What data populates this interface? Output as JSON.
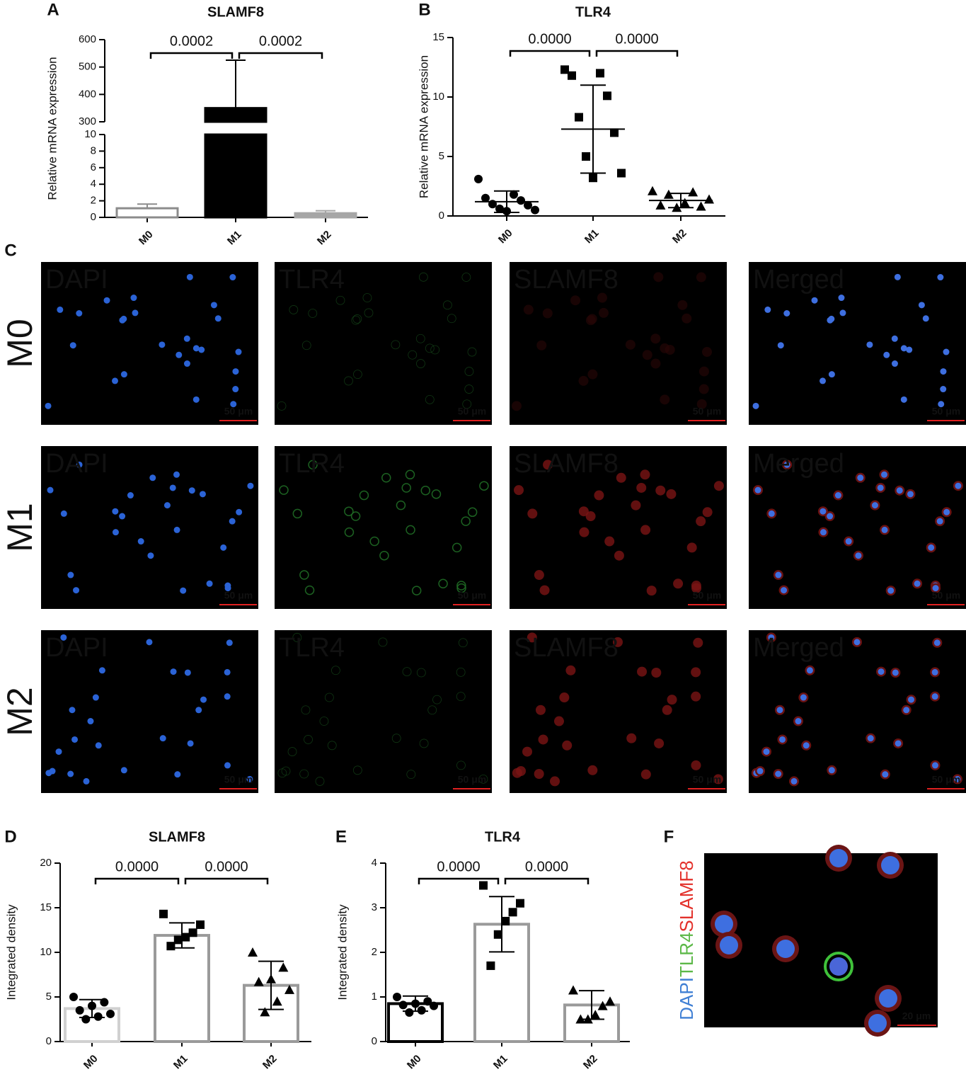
{
  "chart_data": [
    {
      "panel": "A",
      "type": "bar",
      "title": "SLAMF8",
      "ylabel": "Relative mRNA expression",
      "categories": [
        "M0",
        "M1",
        "M2"
      ],
      "values": [
        1.1,
        350,
        0.5
      ],
      "errors": [
        0.5,
        175,
        0.3
      ],
      "bar_fills": [
        "#ffffff",
        "#000000",
        "#a6a6a6"
      ],
      "bar_edges": [
        "#8c8c8c",
        "#000000",
        "#a6a6a6"
      ],
      "ylim": [
        0,
        600
      ],
      "ybreak": [
        10,
        300
      ],
      "yticks": [
        0,
        2,
        4,
        6,
        8,
        10,
        300,
        400,
        500,
        600
      ],
      "annotations": [
        "0.0002",
        "0.0002"
      ]
    },
    {
      "panel": "B",
      "type": "dotplot",
      "title": "TLR4",
      "ylabel": "Relative mRNA expression",
      "categories": [
        "M0",
        "M1",
        "M2"
      ],
      "values": [
        1.2,
        7.3,
        1.3
      ],
      "errors": [
        0.9,
        3.7,
        0.6
      ],
      "points": [
        [
          3.1,
          1.8,
          1.5,
          1.3,
          1.0,
          0.9,
          0.6,
          0.5,
          0.4
        ],
        [
          12.3,
          12.0,
          11.8,
          10.1,
          8.3,
          7.0,
          5.0,
          3.6,
          3.2
        ],
        [
          2.1,
          2.0,
          1.8,
          1.4,
          1.1,
          0.9,
          0.8,
          0.7
        ]
      ],
      "markers": [
        "circle",
        "square",
        "triangle"
      ],
      "ylim": [
        0,
        15
      ],
      "yticks": [
        0,
        5,
        10,
        15
      ],
      "annotations": [
        "0.0000",
        "0.0000"
      ]
    },
    {
      "panel": "D",
      "type": "bar_scatter",
      "title": "SLAMF8",
      "ylabel": "Integrated density",
      "categories": [
        "M0",
        "M1",
        "M2"
      ],
      "values": [
        3.7,
        11.9,
        6.3
      ],
      "errors": [
        1.0,
        1.4,
        2.7
      ],
      "points": [
        [
          5.0,
          4.4,
          4.0,
          3.5,
          3.1,
          2.8,
          2.5
        ],
        [
          14.3,
          13.1,
          12.2,
          11.7,
          11.4,
          10.7
        ],
        [
          10.0,
          8.3,
          7.0,
          6.7,
          5.8,
          4.5,
          3.3
        ]
      ],
      "markers": [
        "circle",
        "square",
        "triangle"
      ],
      "bar_edges": [
        "#d0d0d0",
        "#9a9a9a",
        "#9a9a9a"
      ],
      "ylim": [
        0,
        20
      ],
      "yticks": [
        0,
        5,
        10,
        15,
        20
      ],
      "annotations": [
        "0.0000",
        "0.0000"
      ]
    },
    {
      "panel": "E",
      "type": "bar_scatter",
      "title": "TLR4",
      "ylabel": "Integrated density",
      "categories": [
        "M0",
        "M1",
        "M2"
      ],
      "values": [
        0.85,
        2.63,
        0.82
      ],
      "errors": [
        0.17,
        0.62,
        0.32
      ],
      "points": [
        [
          1.0,
          0.9,
          0.85,
          0.82,
          0.8,
          0.7,
          0.65
        ],
        [
          3.5,
          3.1,
          2.9,
          2.7,
          2.4,
          1.7
        ],
        [
          1.15,
          0.9,
          0.8,
          0.6,
          0.5,
          0.5
        ]
      ],
      "markers": [
        "circle",
        "square",
        "triangle"
      ],
      "bar_edges": [
        "#000000",
        "#9a9a9a",
        "#9a9a9a"
      ],
      "ylim": [
        0,
        4
      ],
      "yticks": [
        0,
        1,
        2,
        3,
        4
      ],
      "annotations": [
        "0.0000",
        "0.0000"
      ]
    }
  ],
  "panel_c": {
    "panel": "C",
    "rows": [
      "M0",
      "M1",
      "M2"
    ],
    "channels": [
      "DAPI",
      "TLR4",
      "SLAMF8",
      "Merged"
    ],
    "channel_colors": [
      "#3f7fd4",
      "#5cb848",
      "#e3312b",
      "#e6e21c"
    ],
    "scale_bar": "50 μm"
  },
  "panel_f": {
    "panel": "F",
    "labels": [
      "DAPI",
      "TLR4",
      "SLAMF8"
    ],
    "label_colors": [
      "#3f7fd4",
      "#5cb848",
      "#e3312b"
    ],
    "scale_bar": "20 μm"
  }
}
